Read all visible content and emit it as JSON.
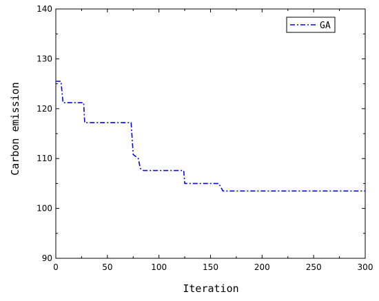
{
  "chart_data": {
    "type": "line",
    "xlabel": "Iteration",
    "ylabel": "Carbon emission",
    "xlim": [
      0,
      300
    ],
    "ylim": [
      90,
      140
    ],
    "xticks": [
      0,
      50,
      100,
      150,
      200,
      250,
      300
    ],
    "yticks": [
      90,
      100,
      110,
      120,
      130,
      140
    ],
    "grid": false,
    "legend_position": "top-right",
    "series": [
      {
        "name": "GA",
        "color": "#0000ff",
        "line_style": "dash-dot",
        "x": [
          0,
          5,
          7,
          27,
          28,
          73,
          74,
          75,
          80,
          82,
          85,
          90,
          124,
          125,
          127,
          158,
          162,
          300
        ],
        "y": [
          125.5,
          125.5,
          121.2,
          121.2,
          117.2,
          117.2,
          114,
          110.8,
          110,
          108,
          107.6,
          107.6,
          107.6,
          105,
          105,
          105,
          103.5,
          103.5
        ]
      }
    ]
  }
}
